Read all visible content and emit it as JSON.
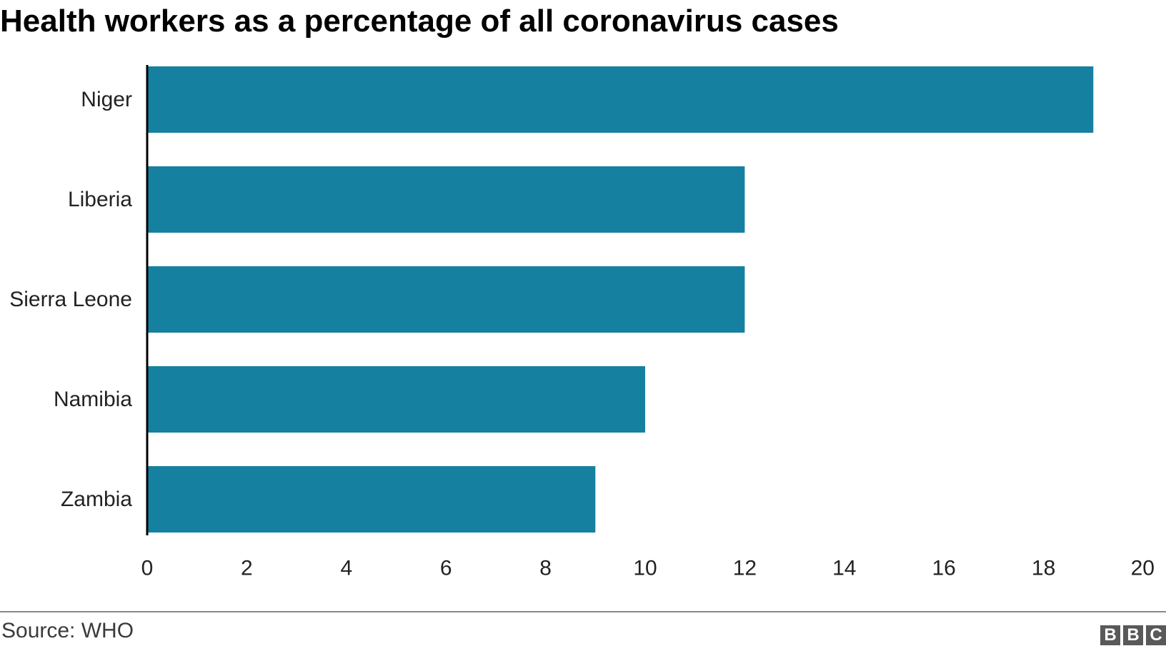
{
  "chart_data": {
    "type": "bar",
    "orientation": "horizontal",
    "title": "Health workers as a percentage of all coronavirus cases",
    "categories": [
      "Niger",
      "Liberia",
      "Sierra Leone",
      "Namibia",
      "Zambia"
    ],
    "values": [
      19,
      12,
      12,
      10,
      9
    ],
    "xlim": [
      0,
      20
    ],
    "xticks": [
      0,
      2,
      4,
      6,
      8,
      10,
      12,
      14,
      16,
      18,
      20
    ],
    "xlabel": "",
    "ylabel": "",
    "grid": false,
    "bar_color": "#1580a0",
    "source": "Source: WHO"
  },
  "branding": {
    "logo_letters": [
      "B",
      "B",
      "C"
    ],
    "logo_color": "#595959"
  }
}
